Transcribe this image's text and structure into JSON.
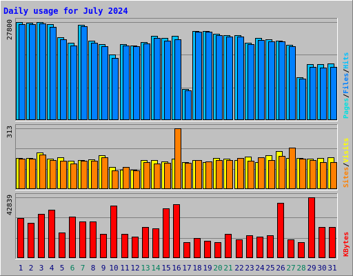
{
  "chart_data": {
    "type": "bar",
    "title": "Daily usage for July 2024",
    "days": [
      1,
      2,
      3,
      4,
      5,
      6,
      7,
      8,
      9,
      10,
      11,
      12,
      13,
      14,
      15,
      16,
      17,
      18,
      19,
      20,
      21,
      22,
      23,
      24,
      25,
      26,
      27,
      28,
      29,
      30,
      31
    ],
    "weekend_days": [
      6,
      7,
      13,
      14,
      20,
      21,
      27,
      28
    ],
    "colors": {
      "hits": "#00c0ff",
      "files": "#0080ff",
      "pages": "#00e0e0",
      "visits": "#ffff00",
      "sites": "#ff8000",
      "kbytes": "#ff0000",
      "weekend_label": "#00805c",
      "weekday_label": "#000080"
    },
    "panels": [
      {
        "key": "top",
        "max_label": "27800",
        "ymax": 27800,
        "legend": [
          {
            "text": "Pages",
            "color": "#00e0e0"
          },
          {
            "text": "Files",
            "color": "#0080ff"
          },
          {
            "text": "Hits",
            "color": "#00c0ff"
          }
        ],
        "series": [
          {
            "name": "Hits",
            "color": "#00c0ff",
            "values": [
              27900,
              27700,
              28000,
              27300,
              23500,
              22000,
              27100,
              22500,
              21500,
              18600,
              21500,
              21200,
              22200,
              23800,
              23200,
              23800,
              8900,
              25200,
              25200,
              24500,
              24000,
              24100,
              21900,
              23200,
              22900,
              22600,
              21300,
              12200,
              15800,
              15900,
              16000
            ]
          },
          {
            "name": "Files",
            "color": "#0080ff",
            "values": [
              27200,
              27200,
              27400,
              26400,
              23000,
              21100,
              26600,
              22000,
              21000,
              17700,
              21200,
              21000,
              21800,
              23200,
              22500,
              22900,
              8500,
              25000,
              25000,
              24000,
              23600,
              23600,
              21500,
              22700,
              22400,
              22300,
              21000,
              11800,
              15000,
              14800,
              15000
            ]
          }
        ]
      },
      {
        "key": "mid",
        "max_label": "313",
        "ymax": 313,
        "legend": [
          {
            "text": "Sites",
            "color": "#ff8000"
          },
          {
            "text": "Visits",
            "color": "#ffff00"
          }
        ],
        "series": [
          {
            "name": "Visits",
            "color": "#ffff00",
            "values": [
              160,
              160,
              190,
              155,
              165,
              145,
              148,
              152,
              175,
              115,
              98,
              98,
              148,
              148,
              142,
              158,
              140,
              150,
              138,
              160,
              158,
              150,
              168,
              140,
              175,
              195,
              160,
              160,
              155,
              160,
              165
            ]
          },
          {
            "name": "Sites",
            "color": "#ff8000",
            "values": [
              155,
              155,
              178,
              150,
              145,
              130,
              145,
              145,
              165,
              95,
              115,
              95,
              140,
              130,
              135,
              313,
              135,
              148,
              143,
              148,
              150,
              160,
              145,
              162,
              150,
              170,
              215,
              155,
              150,
              140,
              140
            ]
          }
        ]
      },
      {
        "key": "bot",
        "max_label": "42839",
        "ymax": 42839,
        "legend": [
          {
            "text": "KBytes",
            "color": "#ff0000"
          }
        ],
        "series": [
          {
            "name": "KBytes",
            "color": "#ff0000",
            "values": [
              28000,
              25000,
              31000,
              34000,
              18000,
              29000,
              26000,
              26000,
              17000,
              37000,
              17000,
              15000,
              22000,
              21000,
              35000,
              38000,
              11000,
              14000,
              12000,
              11000,
              17000,
              13000,
              16000,
              15000,
              16000,
              39000,
              13000,
              11000,
              43000,
              22000,
              22000
            ]
          }
        ]
      }
    ]
  }
}
